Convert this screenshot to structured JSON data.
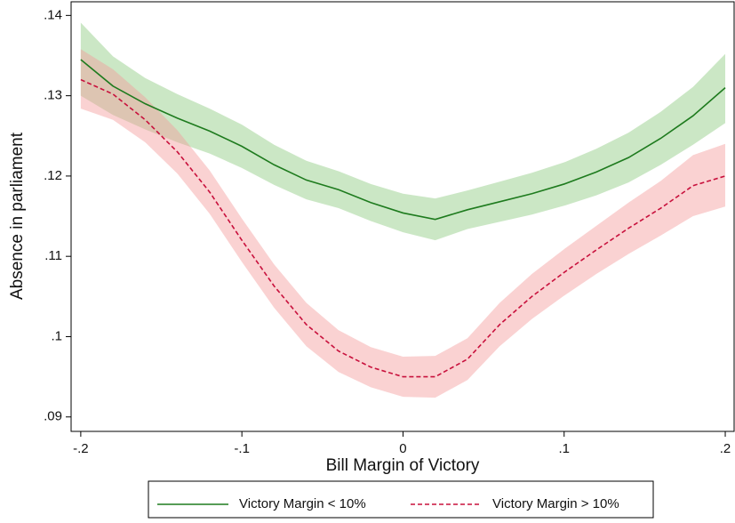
{
  "chart_data": {
    "type": "line",
    "x_label": "Bill Margin of Victory",
    "y_label": "Absence in parliament",
    "x": [
      -0.2,
      -0.18,
      -0.16,
      -0.14,
      -0.12,
      -0.1,
      -0.08,
      -0.06,
      -0.04,
      -0.02,
      0,
      0.02,
      0.04,
      0.06,
      0.08,
      0.1,
      0.12,
      0.14,
      0.16,
      0.18,
      0.2
    ],
    "series": [
      {
        "name": "Victory Margin < 10%",
        "color": "#1e7b1e",
        "band_color": "#8cc97f",
        "dash": false,
        "values": [
          0.1345,
          0.1312,
          0.129,
          0.1272,
          0.1256,
          0.1237,
          0.1214,
          0.1195,
          0.1183,
          0.1167,
          0.1154,
          0.1146,
          0.1158,
          0.1168,
          0.1178,
          0.119,
          0.1205,
          0.1223,
          0.1247,
          0.1275,
          0.131
        ],
        "upper": [
          0.1391,
          0.1349,
          0.1322,
          0.1302,
          0.1284,
          0.1264,
          0.1239,
          0.1219,
          0.1206,
          0.119,
          0.1178,
          0.1172,
          0.1182,
          0.1193,
          0.1204,
          0.1217,
          0.1234,
          0.1254,
          0.128,
          0.1311,
          0.1352
        ],
        "lower": [
          0.13,
          0.1276,
          0.1258,
          0.1242,
          0.1228,
          0.121,
          0.1189,
          0.1171,
          0.116,
          0.1144,
          0.113,
          0.112,
          0.1134,
          0.1143,
          0.1152,
          0.1163,
          0.1176,
          0.1192,
          0.1214,
          0.1239,
          0.1266
        ]
      },
      {
        "name": "Victory Margin > 10%",
        "color": "#c8103c",
        "band_color": "#f59b9b",
        "dash": true,
        "values": [
          0.132,
          0.1302,
          0.127,
          0.123,
          0.118,
          0.112,
          0.1063,
          0.1015,
          0.0982,
          0.0962,
          0.095,
          0.095,
          0.0972,
          0.1015,
          0.105,
          0.108,
          0.1108,
          0.1135,
          0.116,
          0.1188,
          0.12
        ],
        "upper": [
          0.1358,
          0.1333,
          0.1298,
          0.1257,
          0.1207,
          0.1147,
          0.109,
          0.1042,
          0.1008,
          0.0987,
          0.0975,
          0.0976,
          0.0998,
          0.1042,
          0.1078,
          0.1109,
          0.1138,
          0.1167,
          0.1194,
          0.1226,
          0.124
        ],
        "lower": [
          0.1284,
          0.127,
          0.1242,
          0.1203,
          0.1153,
          0.1093,
          0.1036,
          0.0988,
          0.0956,
          0.0937,
          0.0925,
          0.0924,
          0.0946,
          0.0988,
          0.1022,
          0.1051,
          0.1078,
          0.1103,
          0.1126,
          0.115,
          0.1162
        ]
      }
    ],
    "xlim": [
      -0.206,
      0.2055
    ],
    "ylim": [
      0.0882,
      0.1417
    ],
    "xticks": [
      {
        "value": -0.2,
        "label": "-.2"
      },
      {
        "value": -0.1,
        "label": "-.1"
      },
      0,
      {
        "value": 0.1,
        "label": ".1"
      },
      {
        "value": 0.2,
        "label": ".2"
      }
    ],
    "yticks": [
      {
        "value": 0.09,
        "label": ".09"
      },
      {
        "value": 0.1,
        "label": ".1"
      },
      {
        "value": 0.11,
        "label": ".11"
      },
      {
        "value": 0.12,
        "label": ".12"
      },
      {
        "value": 0.13,
        "label": ".13"
      },
      {
        "value": 0.14,
        "label": ".14"
      }
    ],
    "legend": "bottom"
  }
}
